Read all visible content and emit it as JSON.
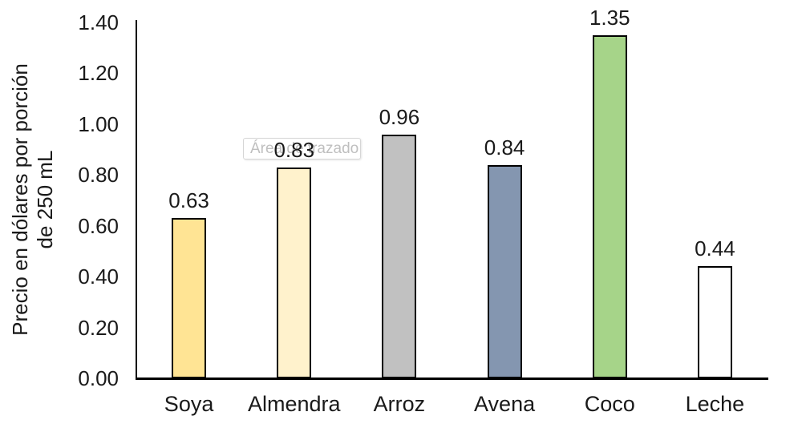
{
  "chart_data": {
    "type": "bar",
    "title": "",
    "categories": [
      "Soya",
      "Almendra",
      "Arroz",
      "Avena",
      "Coco",
      "Leche"
    ],
    "values": [
      0.63,
      0.83,
      0.96,
      0.84,
      1.35,
      0.44
    ],
    "data_labels": [
      "0.63",
      "0.83",
      "0.96",
      "0.84",
      "1.35",
      "0.44"
    ],
    "bar_colors": [
      "#FFE494",
      "#FFF2CC",
      "#C1C1C1",
      "#8496B0",
      "#A6D489",
      "#FFFFFF"
    ],
    "bar_border_color": "#000000",
    "ylabel_line1": "Precio en dólares por porción",
    "ylabel_line2": "de 250 mL",
    "xlabel": "",
    "yticks": [
      "1.40",
      "1.20",
      "1.00",
      "0.80",
      "0.60",
      "0.40",
      "0.20",
      "0.00"
    ],
    "ylim": [
      0,
      1.4
    ],
    "grid": false,
    "legend_position": "none",
    "axis_color": "#000000",
    "text_color": "#1a1a1a"
  },
  "tooltip": {
    "text": "Área de trazado"
  }
}
